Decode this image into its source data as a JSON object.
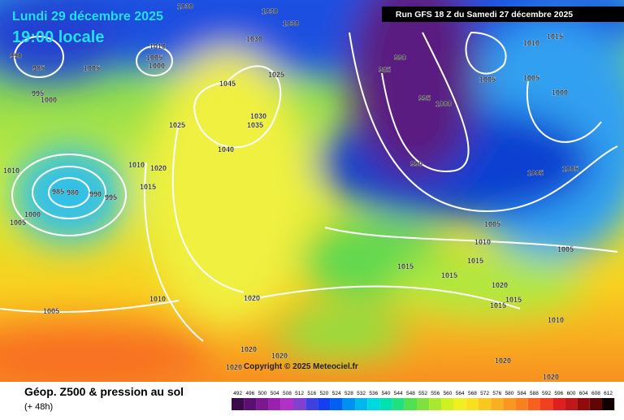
{
  "header": {
    "date": "Lundi 29 décembre 2025",
    "time": "19:00 locale",
    "run": "Run GFS 18 Z du Samedi 27 décembre 2025"
  },
  "copyright": "Copyright © 2025 Meteociel.fr",
  "footer": {
    "title": "Géop. Z500 & pression au sol",
    "lead": "(+ 48h)"
  },
  "isobar_labels": [
    990,
    985,
    1005,
    1010,
    1005,
    1000,
    995,
    1000,
    1030,
    1030,
    1030,
    1030,
    1025,
    1045,
    1025,
    1030,
    1035,
    1040,
    1010,
    1010,
    1020,
    1015,
    985,
    980,
    990,
    995,
    1000,
    1005,
    990,
    985,
    995,
    1000,
    990,
    1005,
    1010,
    1015,
    1005,
    1000,
    1005,
    1005,
    1005,
    1010,
    1005,
    1015,
    1015,
    1015,
    1020,
    1015,
    1015,
    1010,
    1020,
    1005,
    1020,
    1020,
    1020,
    1020,
    1020,
    1010
  ],
  "colorbar": {
    "ticks": [
      492,
      496,
      500,
      504,
      508,
      512,
      516,
      520,
      524,
      528,
      532,
      536,
      540,
      544,
      548,
      552,
      556,
      560,
      564,
      568,
      572,
      576,
      580,
      584,
      588,
      592,
      596,
      600,
      604,
      608,
      612
    ],
    "colors": [
      "#3a0a4a",
      "#5a1070",
      "#7a1890",
      "#9a20b0",
      "#b030c8",
      "#8040d0",
      "#4040e0",
      "#1040f0",
      "#0060f0",
      "#0090f0",
      "#00b8f0",
      "#00d8e0",
      "#00e0b0",
      "#20e080",
      "#50e050",
      "#80e040",
      "#a8e830",
      "#d0f020",
      "#f0f020",
      "#f8e020",
      "#f8c820",
      "#f8b020",
      "#f89820",
      "#f88020",
      "#f86020",
      "#f04020",
      "#e02020",
      "#c01818",
      "#900c0c",
      "#600606",
      "#100000"
    ]
  }
}
